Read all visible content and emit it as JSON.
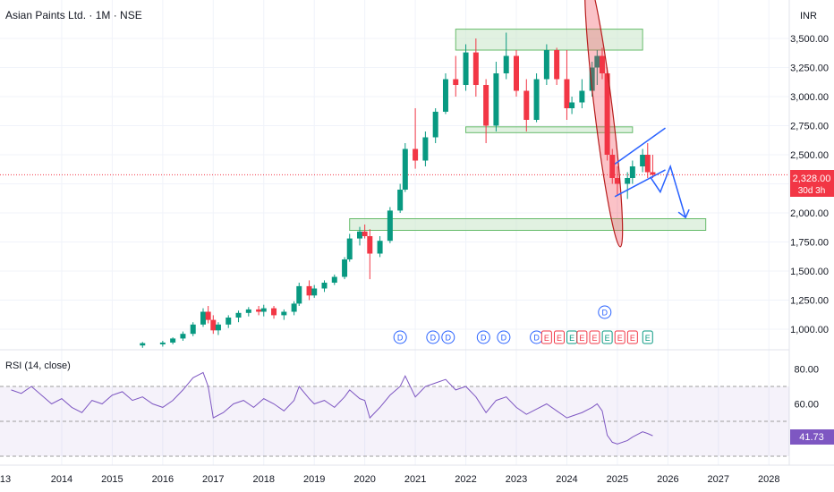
{
  "header": {
    "title": "Asian Paints Ltd. · 1M · NSE",
    "currency": "INR"
  },
  "price_label": {
    "value": "2,328.00",
    "countdown": "30d 3h"
  },
  "rsi": {
    "title": "RSI (14, close)",
    "value_label": "41.73",
    "upper": 70,
    "lower": 30,
    "range": [
      0,
      100
    ]
  },
  "colors": {
    "up": "#089981",
    "down": "#f23645",
    "rsi_line": "#7e57c2",
    "zone_fill": "#c8e6c9",
    "zone_stroke": "#66bb6a",
    "arrow": "#2962ff",
    "price_line": "#f23645"
  },
  "chart_data": {
    "type": "candlestick",
    "title": "Asian Paints Ltd. · 1M · NSE",
    "ylabel": "INR",
    "ylim": [
      900,
      3650
    ],
    "yticks": [
      1000,
      1250,
      1500,
      1750,
      2000,
      2250,
      2500,
      2750,
      3000,
      3250,
      3500
    ],
    "ytick_labels": [
      "1,000.00",
      "1,250.00",
      "1,500.00",
      "1,750.00",
      "2,000.00",
      "2,250.00",
      "2,500.00",
      "2,750.00",
      "3,000.00",
      "3,250.00",
      "3,500.00"
    ],
    "x_years": [
      "13",
      "2014",
      "2015",
      "2016",
      "2017",
      "2018",
      "2019",
      "2020",
      "2021",
      "2022",
      "2023",
      "2024",
      "2025",
      "2026",
      "2027",
      "2028"
    ],
    "last_price": 2328,
    "candles": [
      [
        2015.6,
        860,
        890,
        840,
        880
      ],
      [
        2016.0,
        870,
        900,
        850,
        885
      ],
      [
        2016.2,
        885,
        930,
        870,
        920
      ],
      [
        2016.4,
        920,
        980,
        900,
        960
      ],
      [
        2016.6,
        960,
        1060,
        940,
        1040
      ],
      [
        2016.8,
        1040,
        1180,
        1020,
        1150
      ],
      [
        2016.9,
        1150,
        1200,
        1050,
        1080
      ],
      [
        2017.0,
        1080,
        1120,
        960,
        990
      ],
      [
        2017.1,
        990,
        1060,
        950,
        1040
      ],
      [
        2017.3,
        1040,
        1120,
        1010,
        1100
      ],
      [
        2017.5,
        1100,
        1160,
        1060,
        1140
      ],
      [
        2017.7,
        1140,
        1190,
        1110,
        1170
      ],
      [
        2017.9,
        1170,
        1200,
        1120,
        1150
      ],
      [
        2018.0,
        1150,
        1210,
        1110,
        1180
      ],
      [
        2018.2,
        1180,
        1200,
        1090,
        1120
      ],
      [
        2018.4,
        1120,
        1170,
        1080,
        1150
      ],
      [
        2018.6,
        1150,
        1240,
        1120,
        1220
      ],
      [
        2018.7,
        1220,
        1400,
        1200,
        1370
      ],
      [
        2018.9,
        1370,
        1420,
        1250,
        1290
      ],
      [
        2019.0,
        1290,
        1380,
        1270,
        1350
      ],
      [
        2019.2,
        1350,
        1420,
        1320,
        1400
      ],
      [
        2019.4,
        1400,
        1470,
        1380,
        1450
      ],
      [
        2019.6,
        1450,
        1620,
        1430,
        1600
      ],
      [
        2019.7,
        1600,
        1820,
        1580,
        1780
      ],
      [
        2019.9,
        1780,
        1880,
        1720,
        1840
      ],
      [
        2020.0,
        1840,
        1900,
        1780,
        1800
      ],
      [
        2020.1,
        1800,
        1860,
        1430,
        1650
      ],
      [
        2020.3,
        1650,
        1800,
        1620,
        1760
      ],
      [
        2020.5,
        1760,
        2050,
        1740,
        2020
      ],
      [
        2020.7,
        2020,
        2250,
        2000,
        2200
      ],
      [
        2020.8,
        2200,
        2600,
        2180,
        2550
      ],
      [
        2021.0,
        2550,
        2900,
        2380,
        2450
      ],
      [
        2021.2,
        2450,
        2700,
        2400,
        2650
      ],
      [
        2021.4,
        2650,
        2900,
        2600,
        2870
      ],
      [
        2021.6,
        2870,
        3200,
        2850,
        3150
      ],
      [
        2021.8,
        3150,
        3350,
        3000,
        3100
      ],
      [
        2022.0,
        3100,
        3450,
        3050,
        3380
      ],
      [
        2022.2,
        3380,
        3500,
        3000,
        3100
      ],
      [
        2022.4,
        3100,
        3150,
        2600,
        2750
      ],
      [
        2022.6,
        2750,
        3300,
        2700,
        3200
      ],
      [
        2022.8,
        3200,
        3550,
        3150,
        3350
      ],
      [
        2023.0,
        3350,
        3400,
        3000,
        3050
      ],
      [
        2023.2,
        3050,
        3150,
        2700,
        2800
      ],
      [
        2023.4,
        2800,
        3200,
        2780,
        3150
      ],
      [
        2023.6,
        3150,
        3450,
        3100,
        3400
      ],
      [
        2023.8,
        3400,
        3420,
        3100,
        3150
      ],
      [
        2024.0,
        3150,
        3400,
        2800,
        2900
      ],
      [
        2024.1,
        2900,
        3000,
        2850,
        2950
      ],
      [
        2024.3,
        2950,
        3150,
        2900,
        3050
      ],
      [
        2024.5,
        3050,
        3300,
        3000,
        3250
      ],
      [
        2024.6,
        3250,
        3400,
        3100,
        3350
      ],
      [
        2024.7,
        3350,
        3420,
        3150,
        3200
      ],
      [
        2024.8,
        3200,
        3250,
        2450,
        2500
      ],
      [
        2024.9,
        2500,
        2550,
        2250,
        2300
      ],
      [
        2025.0,
        2300,
        2400,
        2150,
        2250
      ],
      [
        2025.2,
        2250,
        2350,
        2120,
        2300
      ],
      [
        2025.3,
        2300,
        2450,
        2250,
        2400
      ],
      [
        2025.5,
        2400,
        2550,
        2350,
        2500
      ],
      [
        2025.6,
        2500,
        2600,
        2300,
        2350
      ],
      [
        2025.7,
        2350,
        2500,
        2300,
        2328
      ]
    ],
    "zones": [
      {
        "x0": 2021.8,
        "x1": 2025.5,
        "y0": 3400,
        "y1": 3580
      },
      {
        "x0": 2022.0,
        "x1": 2025.3,
        "y0": 2690,
        "y1": 2740
      },
      {
        "x0": 2019.7,
        "x1": 2026.75,
        "y0": 1850,
        "y1": 1950
      }
    ],
    "rsi_values": [
      [
        2013.0,
        68
      ],
      [
        2013.2,
        66
      ],
      [
        2013.4,
        70
      ],
      [
        2013.6,
        65
      ],
      [
        2013.8,
        60
      ],
      [
        2014.0,
        63
      ],
      [
        2014.2,
        58
      ],
      [
        2014.4,
        55
      ],
      [
        2014.6,
        62
      ],
      [
        2014.8,
        60
      ],
      [
        2015.0,
        65
      ],
      [
        2015.2,
        67
      ],
      [
        2015.4,
        62
      ],
      [
        2015.6,
        64
      ],
      [
        2015.8,
        60
      ],
      [
        2016.0,
        58
      ],
      [
        2016.2,
        62
      ],
      [
        2016.4,
        68
      ],
      [
        2016.6,
        75
      ],
      [
        2016.8,
        78
      ],
      [
        2016.9,
        70
      ],
      [
        2017.0,
        52
      ],
      [
        2017.2,
        55
      ],
      [
        2017.4,
        60
      ],
      [
        2017.6,
        62
      ],
      [
        2017.8,
        58
      ],
      [
        2018.0,
        63
      ],
      [
        2018.2,
        60
      ],
      [
        2018.4,
        56
      ],
      [
        2018.6,
        62
      ],
      [
        2018.7,
        70
      ],
      [
        2018.9,
        63
      ],
      [
        2019.0,
        60
      ],
      [
        2019.2,
        62
      ],
      [
        2019.4,
        58
      ],
      [
        2019.6,
        64
      ],
      [
        2019.7,
        68
      ],
      [
        2019.9,
        63
      ],
      [
        2020.0,
        62
      ],
      [
        2020.1,
        52
      ],
      [
        2020.3,
        58
      ],
      [
        2020.5,
        65
      ],
      [
        2020.7,
        70
      ],
      [
        2020.8,
        76
      ],
      [
        2021.0,
        64
      ],
      [
        2021.2,
        70
      ],
      [
        2021.4,
        72
      ],
      [
        2021.6,
        74
      ],
      [
        2021.8,
        68
      ],
      [
        2022.0,
        70
      ],
      [
        2022.2,
        64
      ],
      [
        2022.4,
        55
      ],
      [
        2022.6,
        62
      ],
      [
        2022.8,
        64
      ],
      [
        2023.0,
        58
      ],
      [
        2023.2,
        54
      ],
      [
        2023.4,
        57
      ],
      [
        2023.6,
        60
      ],
      [
        2023.8,
        56
      ],
      [
        2024.0,
        52
      ],
      [
        2024.1,
        53
      ],
      [
        2024.3,
        55
      ],
      [
        2024.5,
        58
      ],
      [
        2024.6,
        60
      ],
      [
        2024.7,
        56
      ],
      [
        2024.8,
        42
      ],
      [
        2024.9,
        38
      ],
      [
        2025.0,
        37
      ],
      [
        2025.2,
        39
      ],
      [
        2025.3,
        41
      ],
      [
        2025.5,
        44
      ],
      [
        2025.6,
        43
      ],
      [
        2025.7,
        41.73
      ]
    ],
    "dividend_markers": [
      2020.7,
      2021.35,
      2021.65,
      2022.35,
      2022.75,
      2023.4,
      2024.75
    ],
    "earnings_markers": [
      2023.6,
      2023.85,
      2024.1,
      2024.3,
      2024.55,
      2024.8,
      2025.05,
      2025.3,
      2025.6
    ]
  }
}
